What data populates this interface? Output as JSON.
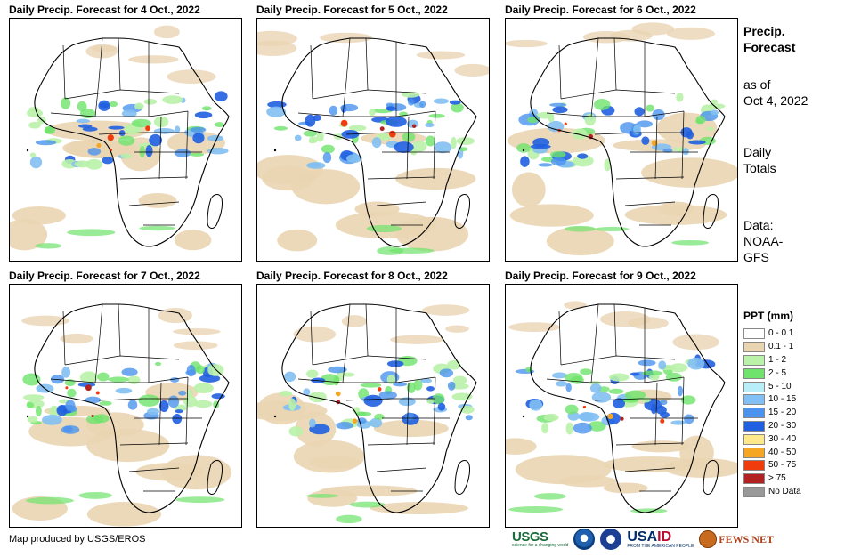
{
  "panels": [
    {
      "title": "Daily Precip. Forecast for 4 Oct., 2022",
      "map": "africa-map-4oct"
    },
    {
      "title": "Daily Precip. Forecast for 5 Oct., 2022",
      "map": "africa-map-5oct"
    },
    {
      "title": "Daily Precip. Forecast for 6 Oct., 2022",
      "map": "africa-map-6oct"
    },
    {
      "title": "Daily Precip. Forecast for 7 Oct., 2022",
      "map": "africa-map-7oct"
    },
    {
      "title": "Daily Precip. Forecast for 8 Oct., 2022",
      "map": "africa-map-8oct"
    },
    {
      "title": "Daily Precip. Forecast for 9 Oct., 2022",
      "map": "africa-map-9oct"
    }
  ],
  "sidebar": {
    "heading_line1": "Precip.",
    "heading_line2": "Forecast",
    "asof_line1": "as of",
    "asof_line2": "Oct 4, 2022",
    "totals_line1": "Daily",
    "totals_line2": "Totals",
    "data_line1": "Data:",
    "data_line2": "NOAA-",
    "data_line3": "GFS"
  },
  "legend": {
    "title": "PPT (mm)",
    "items": [
      {
        "label": "0 - 0.1",
        "color": "#ffffff"
      },
      {
        "label": "0.1 - 1",
        "color": "#ead5b3"
      },
      {
        "label": "1 - 2",
        "color": "#b9f2a8"
      },
      {
        "label": "2 - 5",
        "color": "#6fe36b"
      },
      {
        "label": "5 - 10",
        "color": "#b8eef8"
      },
      {
        "label": "10 - 15",
        "color": "#82bff2"
      },
      {
        "label": "15 - 20",
        "color": "#4b93ee"
      },
      {
        "label": "20 - 30",
        "color": "#1f5fe0"
      },
      {
        "label": "30 - 40",
        "color": "#fde98a"
      },
      {
        "label": "40 - 50",
        "color": "#f5a623"
      },
      {
        "label": "50 - 75",
        "color": "#f03c0c"
      },
      {
        "label": "> 75",
        "color": "#b22222"
      },
      {
        "label": "No Data",
        "color": "#999999"
      }
    ]
  },
  "footer": {
    "credit": "Map produced by USGS/EROS"
  },
  "logos": {
    "usgs": "USGS",
    "usgs_tagline": "science for a changing world",
    "usaid_a": "USA",
    "usaid_b": "ID",
    "usaid_tagline": "FROM THE AMERICAN PEOPLE",
    "fews": "FEWS NET"
  }
}
